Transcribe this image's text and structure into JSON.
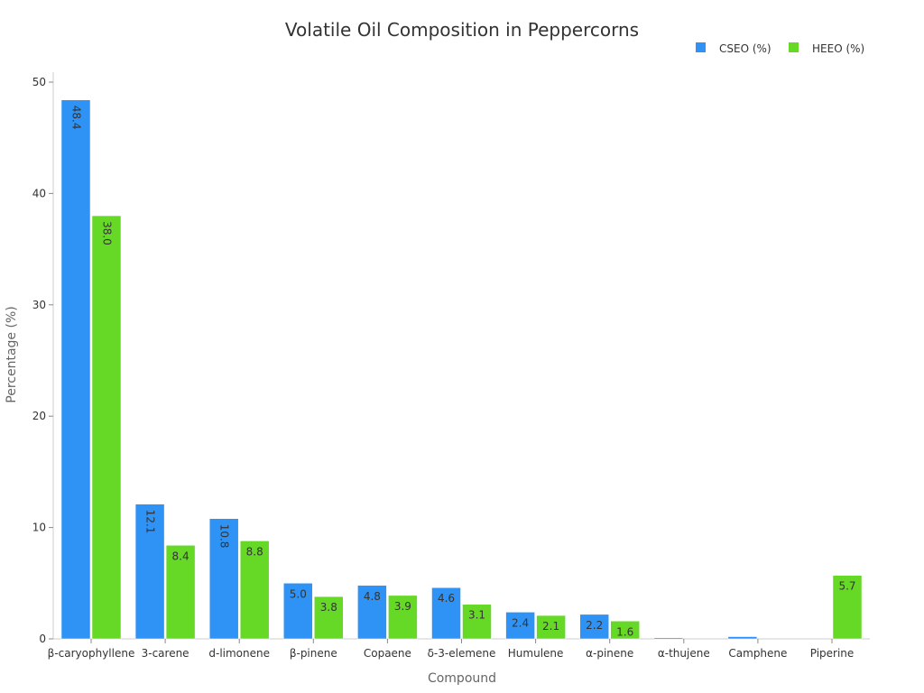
{
  "chart_data": {
    "type": "bar",
    "title": "Volatile Oil Composition in Peppercorns",
    "xlabel": "Compound",
    "ylabel": "Percentage (%)",
    "ylim": [
      0,
      50
    ],
    "yticks": [
      0,
      10,
      20,
      30,
      40,
      50
    ],
    "legend_position": "top-right",
    "categories": [
      "β-caryophyllene",
      "3-carene",
      "d-limonene",
      "β-pinene",
      "Copaene",
      "δ-3-elemene",
      "Humulene",
      "α-pinene",
      "α-thujene",
      "Camphene",
      "Piperine"
    ],
    "series": [
      {
        "name": "CSEO (%)",
        "color": "#2e93f5",
        "values": [
          48.4,
          12.1,
          10.8,
          5.0,
          4.8,
          4.6,
          2.4,
          2.2,
          0.1,
          0.2,
          0
        ]
      },
      {
        "name": "HEEO (%)",
        "color": "#66d926",
        "values": [
          38.0,
          8.4,
          8.8,
          3.8,
          3.9,
          3.1,
          2.1,
          1.6,
          0,
          0,
          5.7
        ]
      }
    ]
  }
}
